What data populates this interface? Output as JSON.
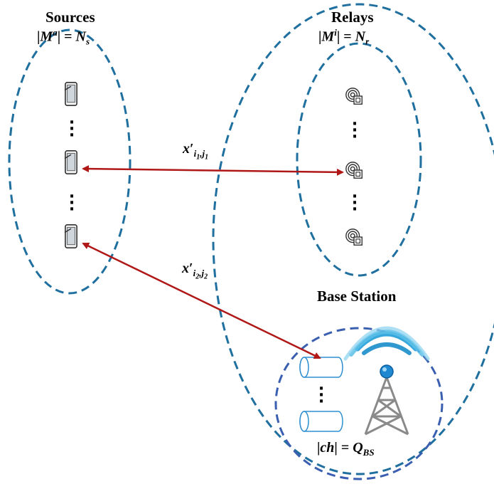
{
  "sources": {
    "title": "Sources",
    "set_label": {
      "bar_open": "|",
      "symbol": "M",
      "superscript": "a",
      "bar_close": "|",
      "equals": " = ",
      "value": "N",
      "subscript": "s"
    }
  },
  "relays": {
    "title": "Relays",
    "set_label": {
      "bar_open": "|",
      "symbol": "M",
      "superscript": "i",
      "bar_close": "|",
      "equals": " = ",
      "value": "N",
      "subscript": "r"
    }
  },
  "base_station": {
    "title": "Base Station",
    "channel_label": {
      "bar_open": "|",
      "symbol": "ch",
      "bar_close": "|",
      "equals": " = ",
      "value": "Q",
      "subscript": "BS"
    }
  },
  "links": [
    {
      "symbol": "x",
      "prime": "′",
      "sub_i": "i",
      "sub_i_index": "1",
      "sub_j": "j",
      "sub_j_index": "1"
    },
    {
      "symbol": "x",
      "prime": "′",
      "sub_i": "i",
      "sub_i_index": "2",
      "sub_j": "j",
      "sub_j_index": "2"
    }
  ],
  "colors": {
    "ellipse_teal": "#1f6f9f",
    "ellipse_blue": "#3a5fb0",
    "arrow": "#b01818",
    "channel": "#2f8fd0",
    "tower": "#8a8a8a",
    "wave": "#38a8dc"
  },
  "icons": {
    "source_device": "tablet-icon",
    "relay": "relay-node-icon",
    "channel": "channel-cylinder-icon",
    "base_station": "cell-tower-icon"
  }
}
